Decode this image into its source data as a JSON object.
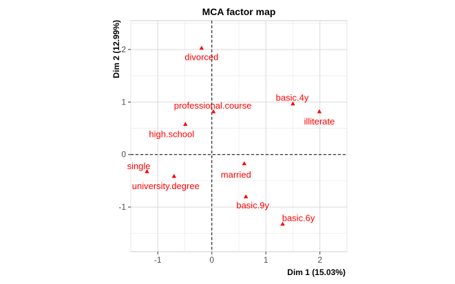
{
  "chart_data": {
    "type": "scatter",
    "title": "MCA factor map",
    "xlabel": "Dim 1 (15.03%)",
    "ylabel": "Dim 2 (12.99%)",
    "xlim": [
      -1.5,
      2.5
    ],
    "ylim": [
      -1.85,
      2.55
    ],
    "x_ticks": [
      -1,
      0,
      1,
      2
    ],
    "y_ticks": [
      -1,
      0,
      1,
      2
    ],
    "x_tick_labels": [
      "-1",
      "0",
      "1",
      "2"
    ],
    "y_tick_labels": [
      "-1",
      "0",
      "1",
      "2"
    ],
    "grid": true,
    "reference_lines": {
      "x": 0,
      "y": 0,
      "style": "dashed"
    },
    "point_color": "#ff0000",
    "points": [
      {
        "label": "divorced",
        "x": -0.19,
        "y": 2.03
      },
      {
        "label": "professional.course",
        "x": 0.03,
        "y": 0.82
      },
      {
        "label": "basic.4y",
        "x": 1.5,
        "y": 0.97
      },
      {
        "label": "illiterate",
        "x": 1.99,
        "y": 0.82
      },
      {
        "label": "high.school",
        "x": -0.49,
        "y": 0.58
      },
      {
        "label": "single",
        "x": -1.2,
        "y": -0.32
      },
      {
        "label": "university.degree",
        "x": -0.7,
        "y": -0.41
      },
      {
        "label": "married",
        "x": 0.6,
        "y": -0.17
      },
      {
        "label": "basic.9y",
        "x": 0.63,
        "y": -0.8
      },
      {
        "label": "basic.6y",
        "x": 1.31,
        "y": -1.32
      }
    ]
  }
}
